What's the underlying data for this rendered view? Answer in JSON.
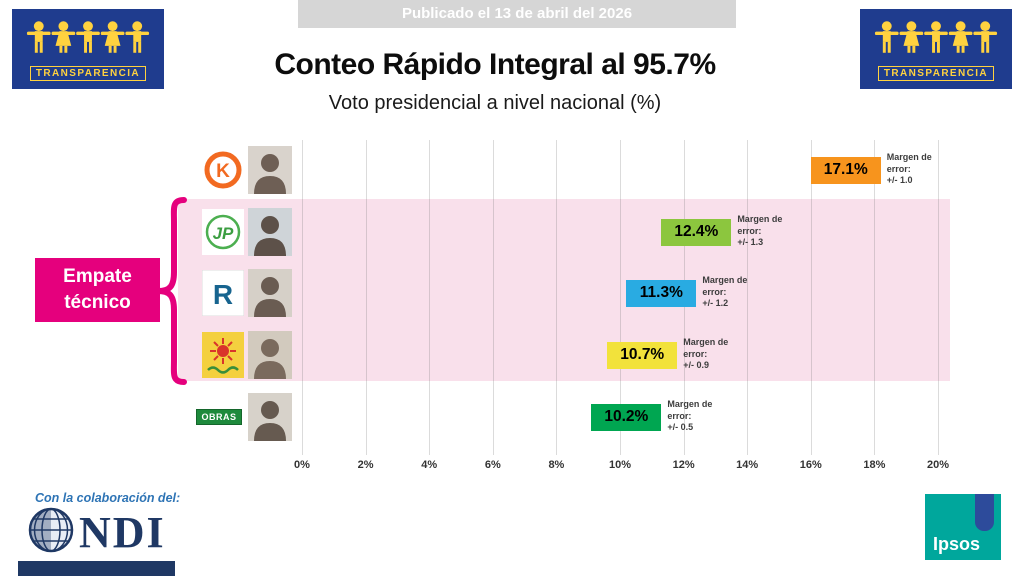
{
  "banner": {
    "published": "Publicado el 13 de abril del 2026"
  },
  "header": {
    "title": "Conteo Rápido Integral al 95.7%",
    "subtitle": "Voto presidencial a nivel nacional (%)"
  },
  "tie_label": {
    "line1": "Empate",
    "line2": "técnico"
  },
  "parties": {
    "k": "K",
    "jp": "JP",
    "r": "R",
    "obras": "OBRAS"
  },
  "logos": {
    "transparencia": "TRANSPARENCIA",
    "ndi_caption": "Con la colaboración del:",
    "ndi": "NDI",
    "ipsos": "Ipsos"
  },
  "colors": {
    "magenta": "#E5007D",
    "tie_region_pink": "#F9E0EB",
    "transparencia_blue": "#1F3C8E",
    "transparencia_yellow": "#FFD23F",
    "ndi_navy": "#1F3864",
    "ipsos_teal": "#00A79C"
  },
  "chart_data": {
    "type": "bar",
    "title": "Conteo Rápido Integral al 95.7%",
    "subtitle": "Voto presidencial a nivel nacional (%)",
    "xlim": [
      0,
      20
    ],
    "x_ticks": [
      "0%",
      "2%",
      "4%",
      "6%",
      "8%",
      "10%",
      "12%",
      "14%",
      "16%",
      "18%",
      "20%"
    ],
    "annotation": "Empate técnico",
    "grid": true,
    "rows": [
      {
        "party_icon": "k-circle-icon",
        "value": 17.1,
        "value_label": "17.1%",
        "margin_label": "Margen de error:",
        "margin_value": "+/- 1.0",
        "color": "#F7941D",
        "in_tie": false
      },
      {
        "party_icon": "jp-icon",
        "value": 12.4,
        "value_label": "12.4%",
        "margin_label": "Margen de error:",
        "margin_value": "+/- 1.3",
        "color": "#8CC63E",
        "in_tie": true
      },
      {
        "party_icon": "r-icon",
        "value": 11.3,
        "value_label": "11.3%",
        "margin_label": "Margen de error:",
        "margin_value": "+/- 1.2",
        "color": "#29ABE2",
        "in_tie": true
      },
      {
        "party_icon": "sun-icon",
        "value": 10.7,
        "value_label": "10.7%",
        "margin_label": "Margen de error:",
        "margin_value": "+/- 0.9",
        "color": "#F2E23B",
        "in_tie": true
      },
      {
        "party_icon": "obras-icon",
        "value": 10.2,
        "value_label": "10.2%",
        "margin_label": "Margen de error:",
        "margin_value": "+/- 0.5",
        "color": "#00A651",
        "in_tie": false
      }
    ]
  }
}
